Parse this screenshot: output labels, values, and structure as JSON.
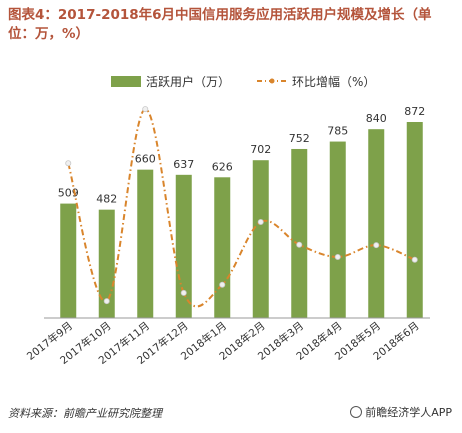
{
  "title": "图表4：2017-2018年6月中国信用服务应用活跃用户规模及增长（单位：万，%）",
  "source": "资料来源：前瞻产业研究院整理",
  "brand": "前瞻经济学人APP",
  "colors": {
    "bar": "#7ea14a",
    "line": "#d9852c",
    "title": "#b4543b"
  },
  "chart_data": {
    "type": "bar",
    "categories": [
      "2017年9月",
      "2017年10月",
      "2017年11月",
      "2017年12月",
      "2018年1月",
      "2018年2月",
      "2018年3月",
      "2018年4月",
      "2018年5月",
      "2018年6月"
    ],
    "series": [
      {
        "name": "活跃用户（万）",
        "type": "bar",
        "values": [
          509,
          482,
          660,
          637,
          626,
          702,
          752,
          785,
          840,
          872
        ]
      },
      {
        "name": "环比增幅（%）",
        "type": "line",
        "style": "dash-dot",
        "values": [
          25.0,
          -5.3,
          36.9,
          -3.5,
          -1.7,
          12.1,
          7.1,
          4.4,
          7.0,
          3.8
        ]
      }
    ],
    "legend_position": "top",
    "grid": false
  }
}
